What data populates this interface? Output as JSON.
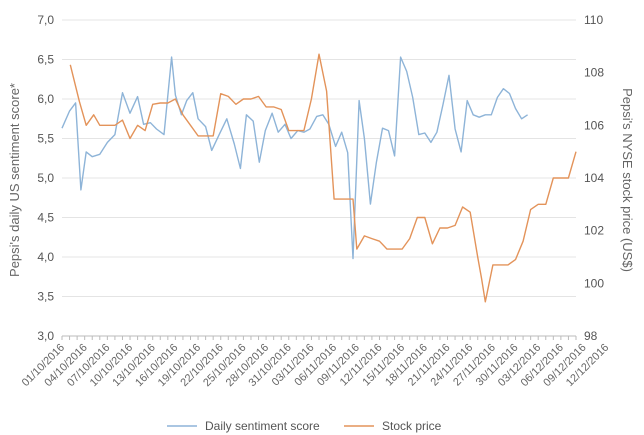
{
  "chart_data": {
    "type": "line",
    "grid": true,
    "legend_position": "bottom",
    "ylabel_left": "Pepsi's daily US sentiment score*",
    "ylabel_right": "Pepsi's NYSE stock price (US$)",
    "ylim_left": [
      3.0,
      7.0
    ],
    "ylim_right": [
      98,
      110
    ],
    "y_ticks_left": [
      "3,0",
      "3,5",
      "4,0",
      "4,5",
      "5,0",
      "5,5",
      "6,0",
      "6,5",
      "7,0"
    ],
    "y_ticks_right": [
      "98",
      "100",
      "102",
      "104",
      "106",
      "108",
      "110"
    ],
    "x_ticks": [
      "01/10/2016",
      "04/10/2016",
      "07/10/2016",
      "10/10/2016",
      "13/10/2016",
      "16/10/2016",
      "19/10/2016",
      "22/10/2016",
      "25/10/2016",
      "28/10/2016",
      "31/10/2016",
      "03/11/2016",
      "06/11/2016",
      "09/11/2016",
      "12/11/2016",
      "15/11/2016",
      "18/11/2016",
      "21/11/2016",
      "24/11/2016",
      "27/11/2016",
      "30/11/2016",
      "03/12/2016",
      "06/12/2016",
      "09/12/2016",
      "12/12/2016"
    ],
    "series": [
      {
        "name": "Daily sentiment score",
        "color": "#8eb4d8",
        "axis": "left",
        "points": [
          [
            0.0,
            5.63
          ],
          [
            1.0,
            5.85
          ],
          [
            1.8,
            5.95
          ],
          [
            2.5,
            4.85
          ],
          [
            3.2,
            5.33
          ],
          [
            4.0,
            5.27
          ],
          [
            5.0,
            5.3
          ],
          [
            6.0,
            5.45
          ],
          [
            7.0,
            5.55
          ],
          [
            8.0,
            6.08
          ],
          [
            9.0,
            5.82
          ],
          [
            10.0,
            6.03
          ],
          [
            10.8,
            5.68
          ],
          [
            11.7,
            5.7
          ],
          [
            12.5,
            5.62
          ],
          [
            13.5,
            5.55
          ],
          [
            14.5,
            6.53
          ],
          [
            15.0,
            6.05
          ],
          [
            15.8,
            5.8
          ],
          [
            16.5,
            5.98
          ],
          [
            17.3,
            6.08
          ],
          [
            18.0,
            5.75
          ],
          [
            19.0,
            5.65
          ],
          [
            19.8,
            5.35
          ],
          [
            20.8,
            5.55
          ],
          [
            21.8,
            5.75
          ],
          [
            22.8,
            5.43
          ],
          [
            23.6,
            5.12
          ],
          [
            24.4,
            5.8
          ],
          [
            25.3,
            5.72
          ],
          [
            26.1,
            5.2
          ],
          [
            26.9,
            5.6
          ],
          [
            27.8,
            5.82
          ],
          [
            28.6,
            5.58
          ],
          [
            29.5,
            5.68
          ],
          [
            30.3,
            5.5
          ],
          [
            31.2,
            5.6
          ],
          [
            32.0,
            5.58
          ],
          [
            32.8,
            5.62
          ],
          [
            33.7,
            5.78
          ],
          [
            34.5,
            5.8
          ],
          [
            35.3,
            5.68
          ],
          [
            36.2,
            5.4
          ],
          [
            37.0,
            5.58
          ],
          [
            37.8,
            5.32
          ],
          [
            38.5,
            3.98
          ],
          [
            39.3,
            5.98
          ],
          [
            40.0,
            5.5
          ],
          [
            40.8,
            4.67
          ],
          [
            41.6,
            5.2
          ],
          [
            42.4,
            5.63
          ],
          [
            43.2,
            5.6
          ],
          [
            44.0,
            5.28
          ],
          [
            44.8,
            6.53
          ],
          [
            45.6,
            6.35
          ],
          [
            46.4,
            6.02
          ],
          [
            47.2,
            5.55
          ],
          [
            48.0,
            5.57
          ],
          [
            48.8,
            5.45
          ],
          [
            49.6,
            5.58
          ],
          [
            50.4,
            5.93
          ],
          [
            51.2,
            6.3
          ],
          [
            52.0,
            5.62
          ],
          [
            52.8,
            5.33
          ],
          [
            53.6,
            5.98
          ],
          [
            54.4,
            5.8
          ],
          [
            55.2,
            5.77
          ],
          [
            56.0,
            5.8
          ],
          [
            56.8,
            5.8
          ],
          [
            57.6,
            6.02
          ],
          [
            58.4,
            6.13
          ],
          [
            59.2,
            6.07
          ],
          [
            60.0,
            5.88
          ],
          [
            60.8,
            5.75
          ],
          [
            61.6,
            5.8
          ]
        ]
      },
      {
        "name": "Stock price",
        "color": "#e3935a",
        "axis": "right",
        "points": [
          [
            1.1,
            108.3
          ],
          [
            2.3,
            106.9
          ],
          [
            3.2,
            106.0
          ],
          [
            4.2,
            106.4
          ],
          [
            5.0,
            106.0
          ],
          [
            6.0,
            106.0
          ],
          [
            7.0,
            106.0
          ],
          [
            8.0,
            106.2
          ],
          [
            9.0,
            105.5
          ],
          [
            10.0,
            106.0
          ],
          [
            11.0,
            105.8
          ],
          [
            12.0,
            106.8
          ],
          [
            13.0,
            106.85
          ],
          [
            14.0,
            106.85
          ],
          [
            15.0,
            107.0
          ],
          [
            16.0,
            106.4
          ],
          [
            17.0,
            106.0
          ],
          [
            18.0,
            105.6
          ],
          [
            19.0,
            105.6
          ],
          [
            20.0,
            105.6
          ],
          [
            21.0,
            107.2
          ],
          [
            22.0,
            107.1
          ],
          [
            23.0,
            106.8
          ],
          [
            24.0,
            107.0
          ],
          [
            25.0,
            107.0
          ],
          [
            26.0,
            107.1
          ],
          [
            27.0,
            106.7
          ],
          [
            28.0,
            106.7
          ],
          [
            29.0,
            106.6
          ],
          [
            30.0,
            105.8
          ],
          [
            31.0,
            105.8
          ],
          [
            32.0,
            105.8
          ],
          [
            33.0,
            107.0
          ],
          [
            34.0,
            108.7
          ],
          [
            35.0,
            107.3
          ],
          [
            36.0,
            103.2
          ],
          [
            37.0,
            103.2
          ],
          [
            38.0,
            103.2
          ],
          [
            38.5,
            103.2
          ],
          [
            39.0,
            101.3
          ],
          [
            40.0,
            101.8
          ],
          [
            41.0,
            101.7
          ],
          [
            42.0,
            101.6
          ],
          [
            43.0,
            101.3
          ],
          [
            44.0,
            101.3
          ],
          [
            45.0,
            101.3
          ],
          [
            46.0,
            101.7
          ],
          [
            47.0,
            102.5
          ],
          [
            48.0,
            102.5
          ],
          [
            49.0,
            101.5
          ],
          [
            50.0,
            102.1
          ],
          [
            51.0,
            102.1
          ],
          [
            52.0,
            102.2
          ],
          [
            53.0,
            102.9
          ],
          [
            54.0,
            102.7
          ],
          [
            55.0,
            101.0
          ],
          [
            55.5,
            100.2
          ],
          [
            56.0,
            99.3
          ],
          [
            57.0,
            100.7
          ],
          [
            58.0,
            100.7
          ],
          [
            59.0,
            100.7
          ],
          [
            60.0,
            100.9
          ],
          [
            61.0,
            101.6
          ],
          [
            62.0,
            102.8
          ],
          [
            63.0,
            103.0
          ],
          [
            64.0,
            103.0
          ],
          [
            65.0,
            104.0
          ],
          [
            66.0,
            104.0
          ],
          [
            67.0,
            104.0
          ],
          [
            68.0,
            105.0
          ]
        ]
      }
    ]
  }
}
